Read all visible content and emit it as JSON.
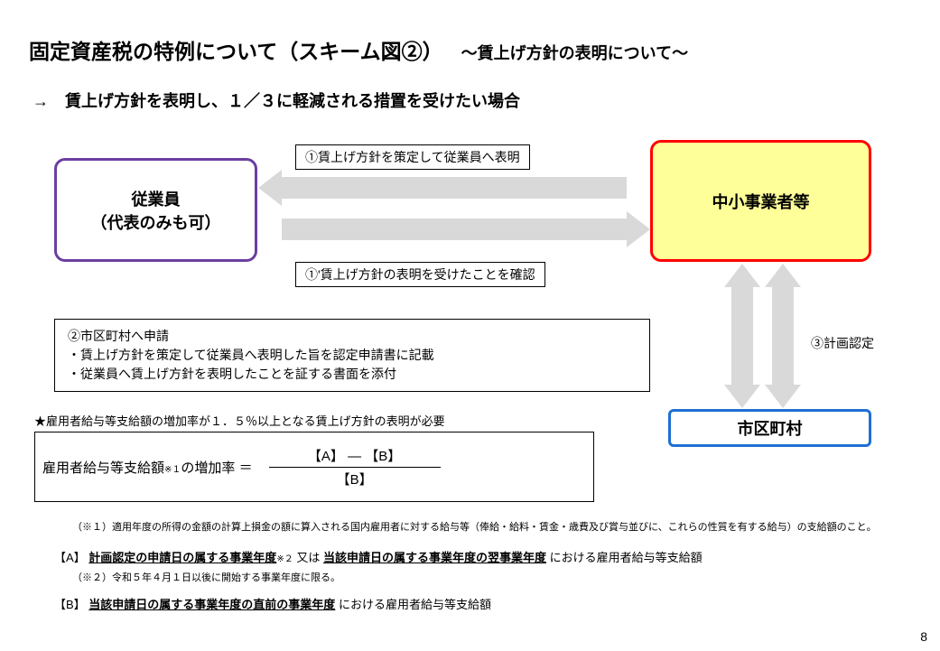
{
  "title": {
    "main": "固定資産税の特例について（スキーム図②）",
    "sub": "～賃上げ方針の表明について～"
  },
  "lead": "→　賃上げ方針を表明し、１／３に軽減される措置を受けたい場合",
  "nodes": {
    "employee_l1": "従業員",
    "employee_l2": "（代表のみも可）",
    "sme": "中小事業者等",
    "municipality": "市区町村"
  },
  "labels": {
    "top": "①賃上げ方針を策定して従業員へ表明",
    "bottom": "①'賃上げ方針の表明を受けたことを確認",
    "plan": "③計画認定"
  },
  "note": {
    "l1": "②市区町村へ申請",
    "l2": "・賃上げ方針を策定して従業員へ表明した旨を認定申請書に記載",
    "l3": "・従業員へ賃上げ方針を表明したことを証する書面を添付"
  },
  "star": "★雇用者給与等支給額の増加率が１．５％以上となる賃上げ方針の表明が必要",
  "formula": {
    "lhs_a": "雇用者給与等支給額",
    "lhs_sub": "※１",
    "lhs_b": "の増加率 ＝",
    "top": "【A】 ― 【B】",
    "bot": "【B】"
  },
  "foot": {
    "n1": "（※１）適用年度の所得の金額の計算上損金の額に算入される国内雇用者に対する給与等（俸給・給料・賃金・歳費及び賞与並びに、これらの性質を有する給与）の支給額のこと。",
    "A_pre": "【A】",
    "A_u1": "計画認定の申請日の属する事業年度",
    "A_sub": "※２",
    "A_mid": " 又は ",
    "A_u2": "当該申請日の属する事業年度の翌事業年度",
    "A_tail": "における雇用者給与等支給額",
    "n2": "（※２）令和５年４月１日以後に開始する事業年度に限る。",
    "B_pre": "【B】",
    "B_u": "当該申請日の属する事業年度の直前の事業年度",
    "B_tail": "における雇用者給与等支給額"
  },
  "page": "8",
  "colors": {
    "employee_border": "#6b3fa0",
    "sme_border": "#ff0000",
    "sme_fill": "#ffff99",
    "muni_border": "#1f6fd4",
    "arrow_fill": "#d9d9d9"
  }
}
